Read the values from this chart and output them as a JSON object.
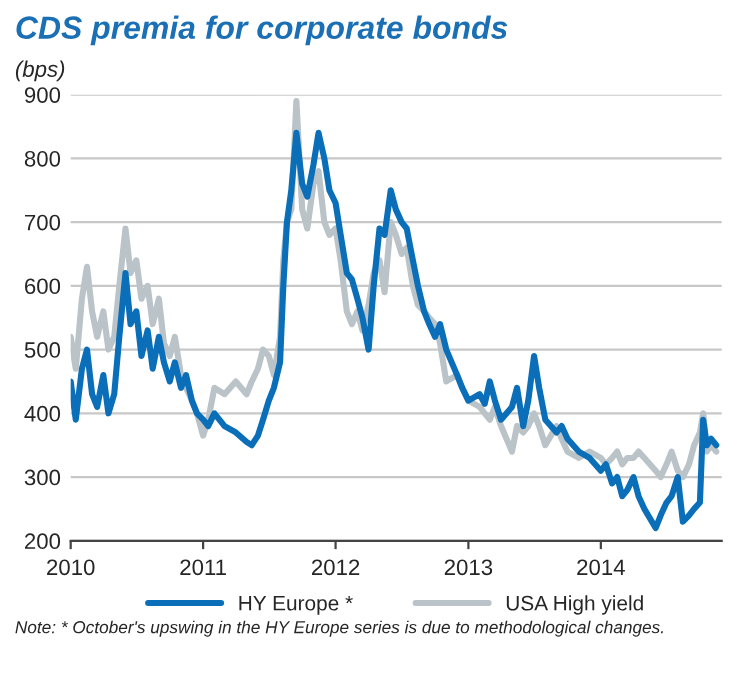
{
  "chart_data": {
    "type": "line",
    "title": "CDS premia for corporate bonds",
    "ylabel": "(bps)",
    "x": [
      "2010-01-01",
      "2010-01-15",
      "2010-02-01",
      "2010-02-15",
      "2010-03-01",
      "2010-03-15",
      "2010-04-01",
      "2010-04-15",
      "2010-05-01",
      "2010-05-15",
      "2010-06-01",
      "2010-06-15",
      "2010-07-01",
      "2010-07-15",
      "2010-08-01",
      "2010-08-15",
      "2010-09-01",
      "2010-09-15",
      "2010-10-01",
      "2010-10-15",
      "2010-11-01",
      "2010-11-15",
      "2010-12-01",
      "2010-12-15",
      "2011-01-01",
      "2011-01-15",
      "2011-02-01",
      "2011-03-01",
      "2011-04-01",
      "2011-05-01",
      "2011-05-15",
      "2011-06-01",
      "2011-06-15",
      "2011-07-01",
      "2011-07-15",
      "2011-08-01",
      "2011-08-10",
      "2011-08-20",
      "2011-09-01",
      "2011-09-15",
      "2011-10-01",
      "2011-10-15",
      "2011-11-01",
      "2011-11-15",
      "2011-12-01",
      "2011-12-15",
      "2012-01-01",
      "2012-01-15",
      "2012-02-01",
      "2012-02-15",
      "2012-03-01",
      "2012-03-15",
      "2012-04-01",
      "2012-04-15",
      "2012-05-01",
      "2012-05-15",
      "2012-06-01",
      "2012-06-15",
      "2012-07-01",
      "2012-07-15",
      "2012-08-01",
      "2012-08-15",
      "2012-09-01",
      "2012-09-15",
      "2012-10-01",
      "2012-10-15",
      "2012-11-01",
      "2012-12-01",
      "2012-12-15",
      "2013-01-01",
      "2013-02-01",
      "2013-02-15",
      "2013-03-01",
      "2013-03-15",
      "2013-04-01",
      "2013-05-01",
      "2013-05-15",
      "2013-06-01",
      "2013-06-15",
      "2013-07-01",
      "2013-07-15",
      "2013-08-01",
      "2013-09-01",
      "2013-09-15",
      "2013-10-01",
      "2013-11-01",
      "2013-12-01",
      "2014-01-01",
      "2014-01-15",
      "2014-02-01",
      "2014-02-15",
      "2014-03-01",
      "2014-03-15",
      "2014-04-01",
      "2014-04-15",
      "2014-05-01",
      "2014-06-01",
      "2014-06-15",
      "2014-07-01",
      "2014-07-15",
      "2014-08-01",
      "2014-08-15",
      "2014-09-01",
      "2014-09-15",
      "2014-10-01",
      "2014-10-10",
      "2014-10-20",
      "2014-11-01",
      "2014-11-15"
    ],
    "series": [
      {
        "name": "HY Europe *",
        "color": "#0a6fb8",
        "values": [
          450,
          390,
          470,
          500,
          430,
          410,
          460,
          400,
          430,
          520,
          620,
          540,
          560,
          490,
          530,
          470,
          520,
          480,
          450,
          480,
          440,
          460,
          420,
          400,
          390,
          380,
          400,
          380,
          370,
          355,
          350,
          365,
          390,
          420,
          440,
          480,
          600,
          700,
          750,
          840,
          760,
          740,
          790,
          840,
          800,
          750,
          730,
          680,
          620,
          610,
          580,
          550,
          500,
          600,
          690,
          680,
          750,
          720,
          700,
          690,
          640,
          600,
          560,
          540,
          520,
          540,
          500,
          460,
          440,
          420,
          430,
          415,
          450,
          420,
          390,
          410,
          440,
          380,
          420,
          490,
          440,
          390,
          370,
          380,
          360,
          340,
          330,
          310,
          320,
          290,
          300,
          270,
          280,
          300,
          270,
          250,
          220,
          240,
          260,
          270,
          300,
          230,
          240,
          250,
          260,
          390,
          350,
          360,
          350
        ]
      },
      {
        "name": "USA High yield",
        "color": "#b9c3c8",
        "values": [
          520,
          470,
          580,
          630,
          560,
          520,
          560,
          500,
          520,
          600,
          690,
          620,
          640,
          580,
          600,
          540,
          580,
          510,
          490,
          520,
          460,
          440,
          420,
          400,
          365,
          390,
          440,
          430,
          450,
          430,
          450,
          470,
          500,
          490,
          460,
          520,
          640,
          700,
          720,
          890,
          720,
          690,
          760,
          780,
          700,
          680,
          690,
          640,
          560,
          540,
          560,
          530,
          570,
          620,
          640,
          590,
          700,
          680,
          650,
          660,
          600,
          570,
          560,
          550,
          540,
          510,
          450,
          460,
          440,
          420,
          410,
          400,
          390,
          410,
          380,
          340,
          380,
          370,
          380,
          400,
          380,
          350,
          380,
          360,
          340,
          330,
          340,
          330,
          320,
          330,
          340,
          320,
          330,
          330,
          340,
          330,
          310,
          300,
          320,
          340,
          310,
          300,
          320,
          350,
          370,
          400,
          340,
          350,
          340
        ]
      }
    ],
    "xlim": [
      "2010-01-01",
      "2014-11-30"
    ],
    "xticks": [
      {
        "value": "2010-01-01",
        "label": "2010"
      },
      {
        "value": "2011-01-01",
        "label": "2011"
      },
      {
        "value": "2012-01-01",
        "label": "2012"
      },
      {
        "value": "2013-01-01",
        "label": "2013"
      },
      {
        "value": "2014-01-01",
        "label": "2014"
      }
    ],
    "ylim": [
      200,
      900
    ],
    "yticks": [
      200,
      300,
      400,
      500,
      600,
      700,
      800,
      900
    ],
    "grid": "y",
    "legend": "bottom",
    "line_style": "solid",
    "marker": "none",
    "annotations": [
      "Note: * October's upswing in the HY Europe series is due to methodological changes."
    ]
  }
}
